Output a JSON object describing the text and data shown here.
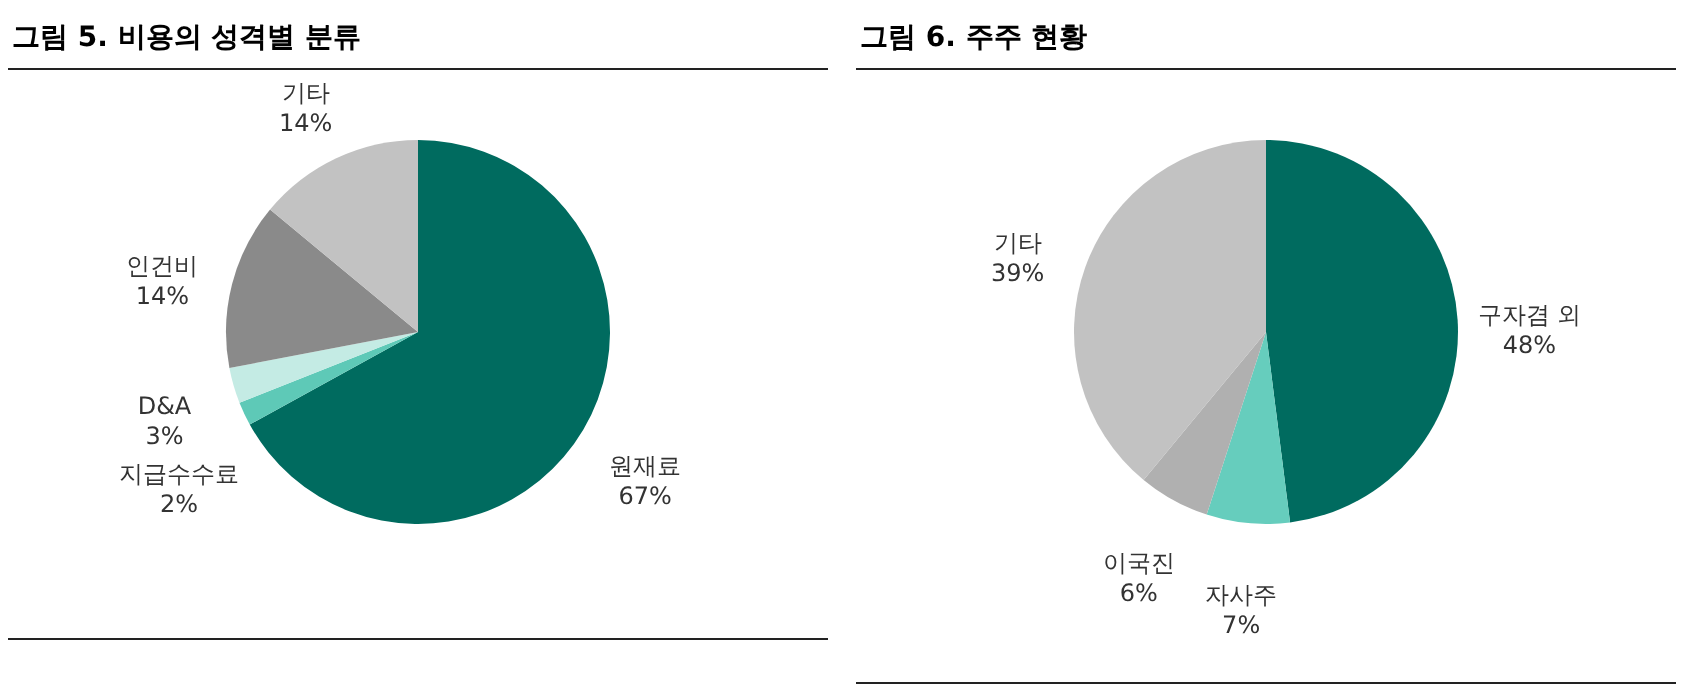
{
  "chart_data": [
    {
      "type": "pie",
      "title": "그림 5. 비용의 성격별 분류",
      "categories": [
        "원재료",
        "지급수수료",
        "D&A",
        "인건비",
        "기타"
      ],
      "values": [
        67,
        2,
        3,
        14,
        14
      ],
      "value_labels": [
        "67%",
        "2%",
        "3%",
        "14%",
        "14%"
      ],
      "colors": [
        "#006b5f",
        "#5ec9b7",
        "#c4ebe4",
        "#8a8a8a",
        "#c2c2c2"
      ],
      "legend": false
    },
    {
      "type": "pie",
      "title": "그림 6. 주주 현황",
      "categories": [
        "구자겸 외",
        "자사주",
        "이국진",
        "기타"
      ],
      "values": [
        48,
        7,
        6,
        39
      ],
      "value_labels": [
        "48%",
        "7%",
        "6%",
        "39%"
      ],
      "colors": [
        "#006b5f",
        "#66cdbd",
        "#b0b0b0",
        "#c2c2c2"
      ],
      "legend": false
    }
  ]
}
